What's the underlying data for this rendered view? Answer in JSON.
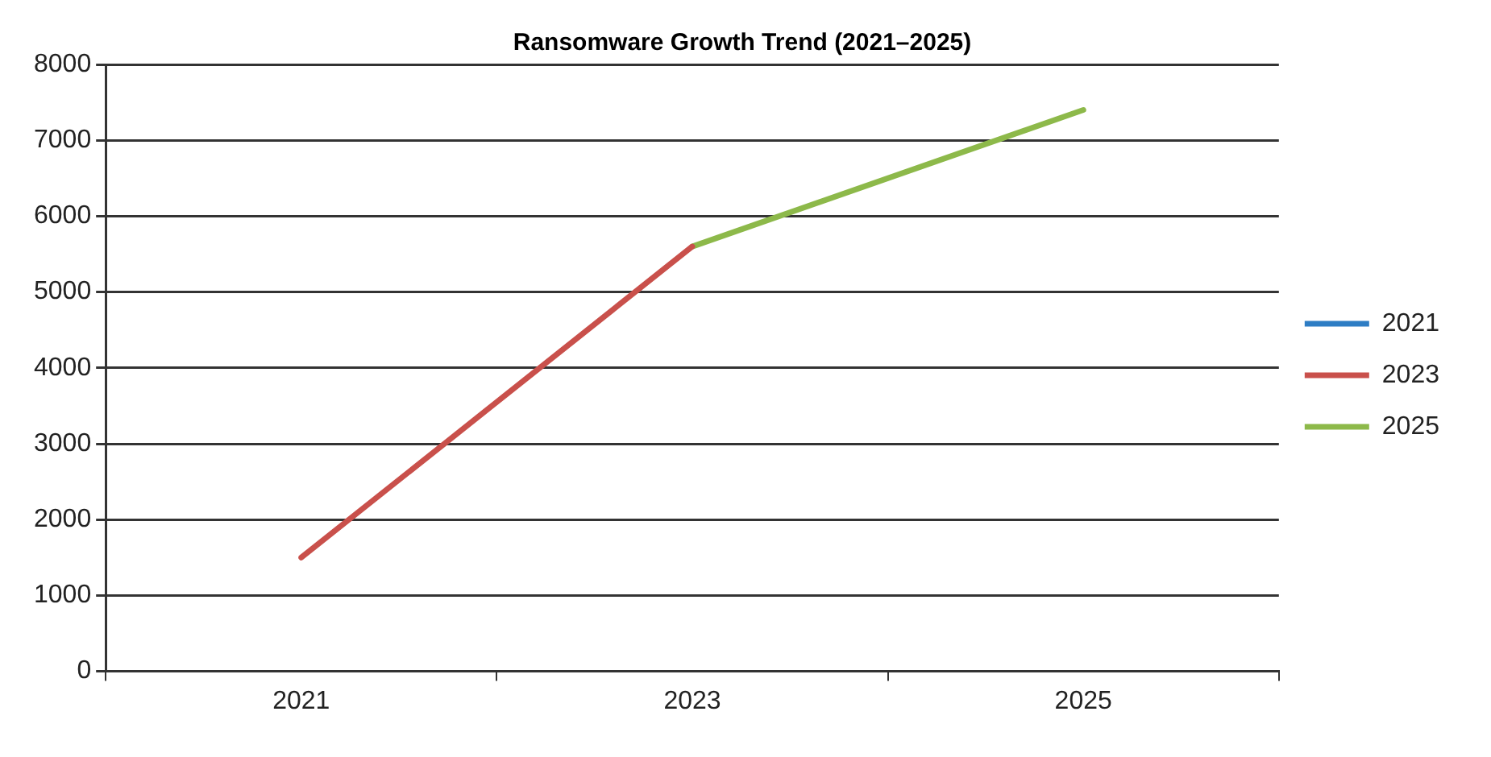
{
  "chart_data": {
    "type": "line",
    "title": "Ransomware Growth Trend (2021–2025)",
    "categories": [
      "2021",
      "2023",
      "2025"
    ],
    "series": [
      {
        "name": "2021",
        "color": "#2e7dc4",
        "values": [
          null,
          null,
          null
        ]
      },
      {
        "name": "2023",
        "color": "#c9504b",
        "values": [
          1500,
          5600,
          null
        ]
      },
      {
        "name": "2025",
        "color": "#8db94a",
        "values": [
          null,
          5600,
          7400
        ]
      }
    ],
    "ylim": [
      0,
      8000
    ],
    "yticks": [
      0,
      1000,
      2000,
      3000,
      4000,
      5000,
      6000,
      7000,
      8000
    ],
    "grid": "y",
    "legend": "right",
    "marker": "none",
    "line_style": "solid"
  }
}
